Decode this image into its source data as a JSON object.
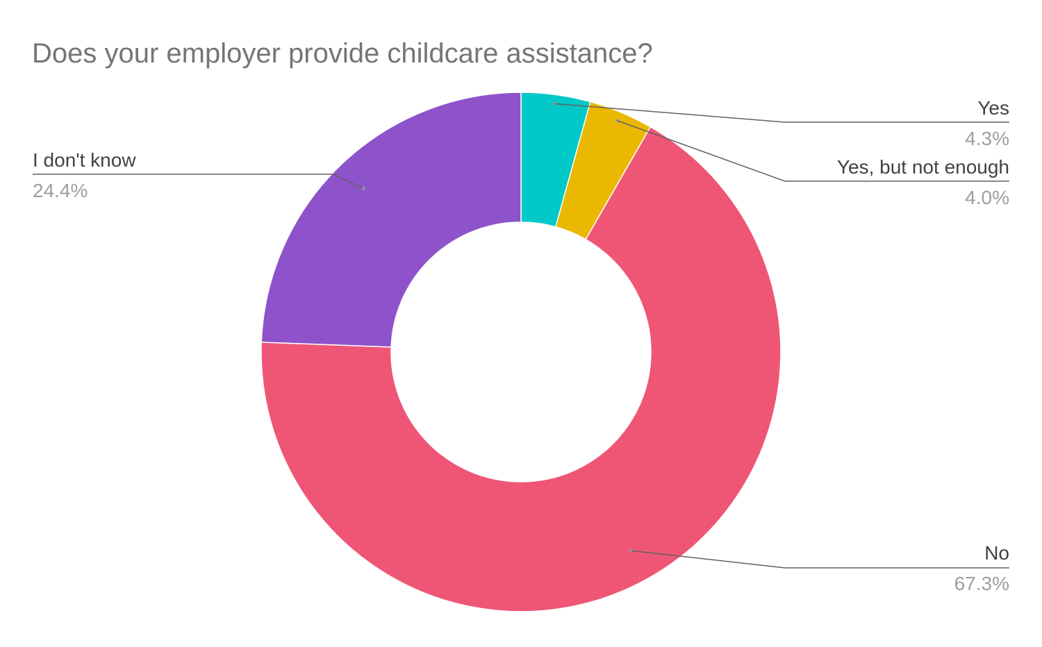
{
  "chart_data": {
    "type": "pie",
    "donut": true,
    "title": "Does your employer provide childcare assistance?",
    "categories": [
      "Yes",
      "Yes, but not enough",
      "No",
      "I don't know"
    ],
    "values": [
      4.3,
      4.0,
      67.3,
      24.4
    ],
    "percent_labels": [
      "4.3%",
      "4.0%",
      "67.3%",
      "24.4%"
    ],
    "colors": [
      "#00c9c8",
      "#eab800",
      "#ef5675",
      "#8e53cb"
    ],
    "start_angle": "top",
    "direction": "clockwise",
    "legend": "none"
  }
}
